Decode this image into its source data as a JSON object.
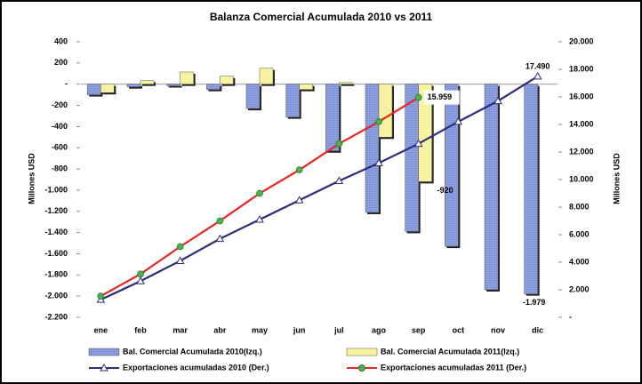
{
  "chart_data": {
    "type": "bar_line",
    "title": "Balanza Comercial Acumulada 2010 vs 2011",
    "ylabel": "Millones USD",
    "y2label": "Millones USD",
    "categories": [
      "ene",
      "feb",
      "mar",
      "abr",
      "may",
      "jun",
      "jul",
      "ago",
      "sep",
      "oct",
      "nov",
      "dic"
    ],
    "ylim": [
      -2200,
      400
    ],
    "yticks": [
      400,
      200,
      {
        "value": 0,
        "label": "-"
      },
      -200,
      -400,
      -600,
      -800,
      {
        "value": -1000,
        "label": "-1.000"
      },
      {
        "value": -1200,
        "label": "-1.200"
      },
      {
        "value": -1400,
        "label": "-1.400"
      },
      {
        "value": -1600,
        "label": "-1.600"
      },
      {
        "value": -1800,
        "label": "-1.800"
      },
      {
        "value": -2000,
        "label": "-2.000"
      },
      {
        "value": -2200,
        "label": "-2.200"
      }
    ],
    "y2lim": [
      0,
      20000
    ],
    "y2ticks": [
      {
        "value": 20000,
        "label": "20.000"
      },
      {
        "value": 18000,
        "label": "18.000"
      },
      {
        "value": 16000,
        "label": "16.000"
      },
      {
        "value": 14000,
        "label": "14.000"
      },
      {
        "value": 12000,
        "label": "12.000"
      },
      {
        "value": 10000,
        "label": "10.000"
      },
      {
        "value": 8000,
        "label": "8.000"
      },
      {
        "value": 6000,
        "label": "6.000"
      },
      {
        "value": 4000,
        "label": "4.000"
      },
      {
        "value": 2000,
        "label": "2.000"
      },
      {
        "value": 0,
        "label": "-"
      }
    ],
    "series": [
      {
        "name": "Bal. Comercial Acumulada 2010(Izq.)",
        "kind": "bar",
        "color": "#7b8fd6",
        "values": [
          -100,
          -25,
          -15,
          -50,
          -230,
          -310,
          -630,
          -1210,
          -1390,
          -1530,
          -1940,
          -1979
        ],
        "value_labels": [
          null,
          null,
          null,
          null,
          null,
          null,
          null,
          null,
          null,
          null,
          null,
          "-1.979"
        ]
      },
      {
        "name": "Bal. Comercial Acumulada 2011(Izq.)",
        "kind": "bar",
        "color": "#f7f3a0",
        "values": [
          -80,
          35,
          115,
          75,
          150,
          -50,
          15,
          -500,
          -920,
          null,
          null,
          null
        ],
        "value_labels": [
          null,
          null,
          null,
          null,
          null,
          null,
          null,
          null,
          "-920",
          null,
          null,
          null
        ]
      },
      {
        "name": "Exportaciones acumuladas 2010 (Der.)",
        "kind": "line",
        "axis": "y2",
        "color": "#2b2d7a",
        "values": [
          1280,
          2630,
          4100,
          5700,
          7100,
          8500,
          9900,
          11200,
          12600,
          14200,
          15700,
          17490
        ],
        "value_labels": [
          null,
          null,
          null,
          null,
          null,
          null,
          null,
          null,
          null,
          null,
          null,
          "17.490"
        ]
      },
      {
        "name": "Exportaciones acumuladas 2011 (Der.)",
        "kind": "line",
        "axis": "y2",
        "color": "#e8251f",
        "values": [
          1540,
          3140,
          5130,
          7000,
          9000,
          10700,
          12600,
          14200,
          15959,
          null,
          null,
          null
        ],
        "value_labels": [
          null,
          null,
          null,
          null,
          null,
          null,
          null,
          null,
          "15.959",
          null,
          null,
          null
        ]
      }
    ]
  }
}
